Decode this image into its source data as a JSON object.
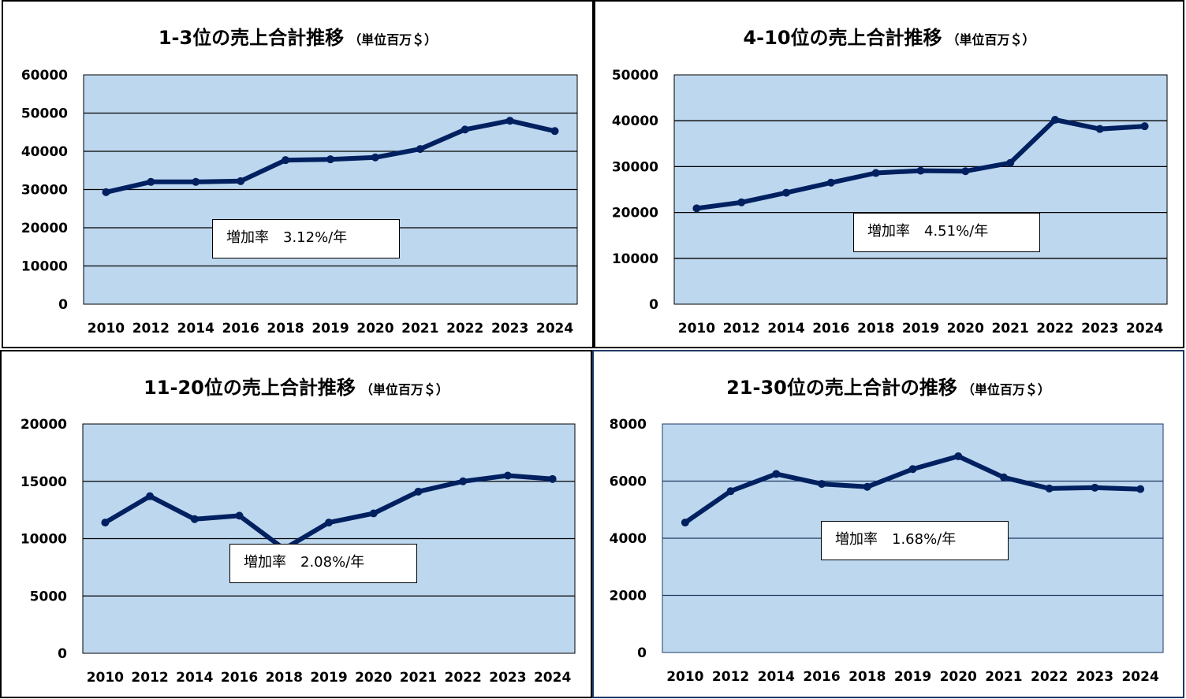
{
  "colors": {
    "plot_bg": "#bdd7ee",
    "line": "#002060",
    "grid": "#000000",
    "grid_alt": "#1f3864"
  },
  "chart_data": [
    {
      "type": "line",
      "title": "1-3位の売上合計推移",
      "unit": "（単位百万＄）",
      "categories": [
        "2010",
        "2012",
        "2014",
        "2016",
        "2018",
        "2019",
        "2020",
        "2021",
        "2022",
        "2023",
        "2024"
      ],
      "series": [
        {
          "values": [
            29300,
            32000,
            32000,
            32200,
            37700,
            37900,
            38400,
            40600,
            45700,
            48000,
            45300
          ]
        }
      ],
      "ylim": [
        0,
        60000
      ],
      "yticks": [
        0,
        10000,
        20000,
        30000,
        40000,
        50000,
        60000
      ],
      "annotation": "増加率　3.12%/年",
      "grid": true
    },
    {
      "type": "line",
      "title": "4-10位の売上合計推移",
      "unit": "（単位百万＄）",
      "categories": [
        "2010",
        "2012",
        "2014",
        "2016",
        "2018",
        "2019",
        "2020",
        "2021",
        "2022",
        "2023",
        "2024"
      ],
      "series": [
        {
          "values": [
            20900,
            22200,
            24300,
            26500,
            28600,
            29100,
            29000,
            30800,
            40200,
            38200,
            38800
          ]
        }
      ],
      "ylim": [
        0,
        50000
      ],
      "yticks": [
        0,
        10000,
        20000,
        30000,
        40000,
        50000
      ],
      "annotation": "増加率　4.51%/年",
      "grid": true
    },
    {
      "type": "line",
      "title": "11-20位の売上合計推移",
      "unit": "（単位百万＄）",
      "categories": [
        "2010",
        "2012",
        "2014",
        "2016",
        "2018",
        "2019",
        "2020",
        "2021",
        "2022",
        "2023",
        "2024"
      ],
      "series": [
        {
          "values": [
            11400,
            13700,
            11700,
            12000,
            9100,
            11400,
            12200,
            14100,
            15000,
            15500,
            15200
          ]
        }
      ],
      "ylim": [
        0,
        20000
      ],
      "yticks": [
        0,
        5000,
        10000,
        15000,
        20000
      ],
      "annotation": "増加率　2.08%/年",
      "grid": true
    },
    {
      "type": "line",
      "title": "21-30位の売上合計の推移",
      "unit": "（単位百万＄）",
      "categories": [
        "2010",
        "2012",
        "2014",
        "2016",
        "2018",
        "2019",
        "2020",
        "2021",
        "2022",
        "2023",
        "2024"
      ],
      "series": [
        {
          "values": [
            4550,
            5650,
            6250,
            5900,
            5800,
            6420,
            6870,
            6130,
            5740,
            5770,
            5720
          ]
        }
      ],
      "ylim": [
        0,
        8000
      ],
      "yticks": [
        0,
        2000,
        4000,
        6000,
        8000
      ],
      "annotation": "増加率　1.68%/年",
      "grid": true
    }
  ]
}
